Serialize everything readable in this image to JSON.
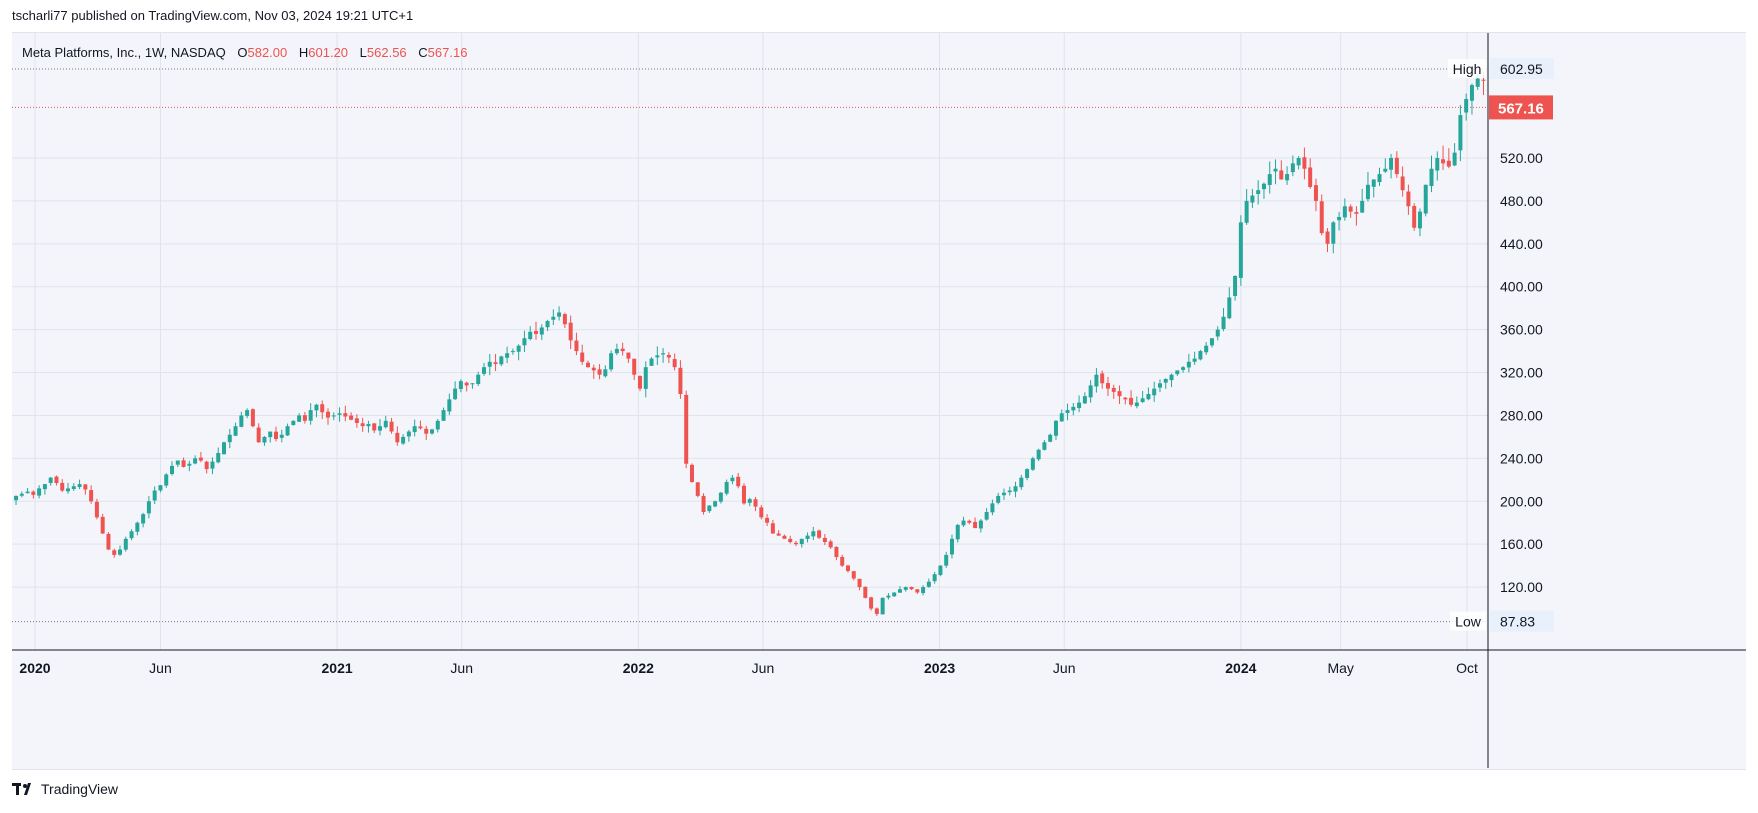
{
  "header": {
    "text": "tscharli77 published on TradingView.com, Nov 03, 2024 19:21 UTC+1"
  },
  "legend": {
    "symbol": "Meta Platforms, Inc., 1W, NASDAQ",
    "open_label": "O",
    "open": "582.00",
    "high_label": "H",
    "high": "601.20",
    "low_label": "L",
    "low": "562.56",
    "close_label": "C",
    "close": "567.16"
  },
  "footer": {
    "brand": "TradingView"
  },
  "colors": {
    "up": "#26a69a",
    "down": "#ef5350",
    "grid": "#e0e3eb",
    "background": "#f3f5fb"
  },
  "chart_data": {
    "type": "candlestick",
    "ylim": [
      80,
      630
    ],
    "y_ticks": [
      120,
      160,
      200,
      240,
      280,
      320,
      360,
      400,
      440,
      480,
      520
    ],
    "y_tick_labels": [
      "120.00",
      "160.00",
      "200.00",
      "240.00",
      "280.00",
      "320.00",
      "360.00",
      "400.00",
      "440.00",
      "480.00",
      "520.00"
    ],
    "x_ticks": [
      {
        "label": "2020",
        "date": "2020-01-01",
        "bold": true
      },
      {
        "label": "Jun",
        "date": "2020-06-01",
        "bold": false
      },
      {
        "label": "2021",
        "date": "2021-01-01",
        "bold": true
      },
      {
        "label": "Jun",
        "date": "2021-06-01",
        "bold": false
      },
      {
        "label": "2022",
        "date": "2022-01-01",
        "bold": true
      },
      {
        "label": "Jun",
        "date": "2022-06-01",
        "bold": false
      },
      {
        "label": "2023",
        "date": "2023-01-01",
        "bold": true
      },
      {
        "label": "Jun",
        "date": "2023-06-01",
        "bold": false
      },
      {
        "label": "2024",
        "date": "2024-01-01",
        "bold": true
      },
      {
        "label": "May",
        "date": "2024-05-01",
        "bold": false
      },
      {
        "label": "Oct",
        "date": "2024-10-01",
        "bold": false
      }
    ],
    "high_marker": {
      "label": "High",
      "value": 602.95,
      "text": "602.95"
    },
    "low_marker": {
      "label": "Low",
      "value": 87.83,
      "text": "87.83"
    },
    "last_price": {
      "value": 567.16,
      "text": "567.16"
    },
    "series_dates": {
      "start": "2019-11-25",
      "step_days": 7
    },
    "closes": [
      196,
      201,
      205,
      207,
      209,
      206,
      212,
      216,
      222,
      217,
      210,
      212,
      214,
      216,
      211,
      200,
      185,
      170,
      155,
      150,
      155,
      165,
      172,
      180,
      188,
      200,
      210,
      215,
      225,
      233,
      238,
      232,
      235,
      240,
      238,
      230,
      237,
      245,
      255,
      262,
      270,
      280,
      285,
      270,
      255,
      260,
      265,
      258,
      262,
      270,
      275,
      280,
      275,
      285,
      290,
      283,
      278,
      280,
      282,
      279,
      276,
      273,
      270,
      272,
      266,
      270,
      275,
      265,
      255,
      260,
      265,
      270,
      268,
      263,
      267,
      275,
      285,
      295,
      305,
      312,
      308,
      310,
      318,
      325,
      330,
      328,
      335,
      338,
      340,
      345,
      352,
      358,
      356,
      362,
      368,
      372,
      376,
      365,
      350,
      340,
      330,
      325,
      322,
      318,
      323,
      338,
      342,
      340,
      333,
      318,
      305,
      325,
      333,
      336,
      338,
      334,
      325,
      300,
      235,
      218,
      205,
      190,
      196,
      200,
      208,
      218,
      222,
      214,
      198,
      202,
      195,
      185,
      180,
      170,
      168,
      165,
      162,
      160,
      165,
      168,
      172,
      166,
      162,
      157,
      148,
      140,
      135,
      128,
      120,
      110,
      100,
      95,
      110,
      112,
      115,
      118,
      120,
      118,
      115,
      120,
      125,
      132,
      140,
      150,
      165,
      178,
      182,
      180,
      175,
      182,
      190,
      198,
      205,
      208,
      210,
      214,
      222,
      230,
      240,
      248,
      255,
      262,
      275,
      282,
      285,
      288,
      292,
      298,
      308,
      318,
      310,
      305,
      302,
      298,
      295,
      290,
      292,
      296,
      300,
      305,
      310,
      314,
      318,
      322,
      325,
      330,
      333,
      340,
      345,
      352,
      360,
      372,
      390,
      410,
      460,
      480,
      485,
      490,
      496,
      505,
      510,
      500,
      505,
      515,
      520,
      510,
      493,
      480,
      450,
      440,
      460,
      465,
      475,
      470,
      468,
      480,
      495,
      500,
      505,
      510,
      520,
      505,
      490,
      475,
      455,
      470,
      495,
      510,
      520,
      515,
      512,
      525,
      560,
      575,
      588,
      594,
      592,
      578,
      567
    ]
  }
}
